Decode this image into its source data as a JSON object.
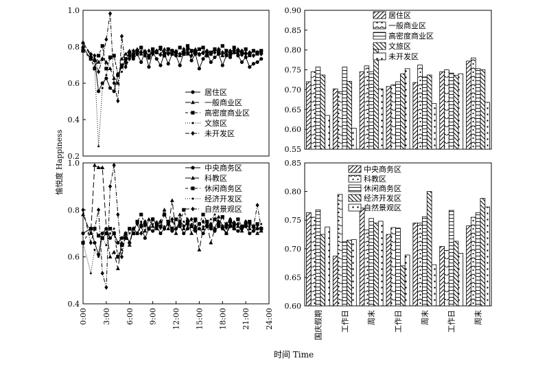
{
  "figure": {
    "ylabel": "愉悦度 Happiness",
    "xlabel": "时间 Time"
  },
  "chart_data": [
    {
      "type": "line",
      "panel": "top-left",
      "xlim": [
        0,
        24
      ],
      "ylim": [
        0.1,
        1.0
      ],
      "yticks": [
        "1.0",
        "0.8",
        "0.6",
        "0.4",
        "0.2"
      ],
      "xticks": [],
      "legend_position": "center-right",
      "x": [
        0,
        1,
        1.5,
        2,
        2.5,
        3,
        3.5,
        4,
        4.5,
        5,
        5.5,
        6,
        6.5,
        7,
        7.5,
        8,
        8.5,
        9,
        9.5,
        10,
        10.5,
        11,
        11.5,
        12,
        12.5,
        13,
        13.5,
        14,
        14.5,
        15,
        15.5,
        16,
        16.5,
        17,
        17.5,
        18,
        18.5,
        19,
        19.5,
        20,
        20.5,
        21,
        21.5,
        22,
        22.5,
        23
      ],
      "series": [
        {
          "name": "居住区",
          "marker": "circle",
          "dash": "solid",
          "values": [
            0.77,
            0.7,
            0.69,
            0.5,
            0.55,
            0.58,
            0.52,
            0.5,
            0.6,
            0.65,
            0.68,
            0.72,
            0.7,
            0.73,
            0.68,
            0.74,
            0.65,
            0.74,
            0.7,
            0.66,
            0.73,
            0.67,
            0.73,
            0.72,
            0.66,
            0.74,
            0.76,
            0.69,
            0.73,
            0.64,
            0.7,
            0.74,
            0.68,
            0.71,
            0.73,
            0.66,
            0.72,
            0.71,
            0.75,
            0.72,
            0.68,
            0.71,
            0.65,
            0.67,
            0.68,
            0.7
          ]
        },
        {
          "name": "一般商业区",
          "marker": "triangle",
          "dash": "8,4",
          "values": [
            0.8,
            0.72,
            0.7,
            0.68,
            0.7,
            0.68,
            0.64,
            0.58,
            0.55,
            0.7,
            0.73,
            0.75,
            0.74,
            0.76,
            0.73,
            0.75,
            0.71,
            0.75,
            0.74,
            0.73,
            0.76,
            0.74,
            0.73,
            0.75,
            0.72,
            0.74,
            0.73,
            0.75,
            0.76,
            0.73,
            0.74,
            0.75,
            0.73,
            0.76,
            0.74,
            0.72,
            0.75,
            0.73,
            0.74,
            0.76,
            0.73,
            0.74,
            0.72,
            0.75,
            0.73,
            0.74
          ]
        },
        {
          "name": "高密度商业区",
          "marker": "square",
          "dash": "4,3",
          "values": [
            0.75,
            0.7,
            0.64,
            0.72,
            0.78,
            0.64,
            0.71,
            0.72,
            0.6,
            0.66,
            0.7,
            0.74,
            0.72,
            0.75,
            0.77,
            0.74,
            0.72,
            0.76,
            0.74,
            0.77,
            0.72,
            0.76,
            0.75,
            0.74,
            0.77,
            0.73,
            0.78,
            0.75,
            0.74,
            0.76,
            0.77,
            0.72,
            0.74,
            0.76,
            0.74,
            0.78,
            0.75,
            0.73,
            0.77,
            0.75,
            0.74,
            0.76,
            0.73,
            0.75,
            0.74,
            0.75
          ]
        },
        {
          "name": "文旅区",
          "marker": "small-circle",
          "dash": "1,2",
          "values": [
            0.78,
            0.72,
            0.65,
            0.16,
            0.52,
            0.6,
            0.7,
            0.72,
            0.61,
            0.62,
            0.66,
            0.7,
            0.73,
            0.74,
            0.75,
            0.73,
            0.7,
            0.74,
            0.75,
            0.72,
            0.73,
            0.74,
            0.75,
            0.73,
            0.72,
            0.75,
            0.73,
            0.74,
            0.75,
            0.72,
            0.73,
            0.74,
            0.73,
            0.76,
            0.74,
            0.73,
            0.72,
            0.74,
            0.75,
            0.73,
            0.72,
            0.74,
            0.73,
            0.72,
            0.73,
            0.74
          ]
        },
        {
          "name": "未开发区",
          "marker": "diamond",
          "dash": "6,2,1,2",
          "values": [
            0.8,
            0.73,
            0.72,
            0.62,
            0.7,
            0.82,
            0.98,
            0.55,
            0.44,
            0.84,
            0.65,
            0.7,
            0.75,
            0.73,
            0.74,
            0.72,
            0.75,
            0.73,
            0.75,
            0.76,
            0.74,
            0.73,
            0.75,
            0.74,
            0.73,
            0.76,
            0.74,
            0.72,
            0.75,
            0.73,
            0.74,
            0.75,
            0.73,
            0.74,
            0.76,
            0.74,
            0.73,
            0.75,
            0.74,
            0.73,
            0.75,
            0.73,
            0.74,
            0.72,
            0.74,
            0.73
          ]
        }
      ]
    },
    {
      "type": "line",
      "panel": "bottom-left",
      "xlim": [
        0,
        24
      ],
      "ylim": [
        0.4,
        1.0
      ],
      "yticks": [
        "1.0",
        "0.8",
        "0.6",
        "0.4"
      ],
      "xticks": [
        "0:00",
        "3:00",
        "6:00",
        "9:00",
        "12:00",
        "15:00",
        "18:00",
        "21:00",
        "24:00"
      ],
      "legend_position": "top-right",
      "x": [
        0,
        1,
        1.5,
        2,
        2.5,
        3,
        3.5,
        4,
        4.5,
        5,
        5.5,
        6,
        6.5,
        7,
        7.5,
        8,
        8.5,
        9,
        9.5,
        10,
        10.5,
        11,
        11.5,
        12,
        12.5,
        13,
        13.5,
        14,
        14.5,
        15,
        15.5,
        16,
        16.5,
        17,
        17.5,
        18,
        18.5,
        19,
        19.5,
        20,
        20.5,
        21,
        21.5,
        22,
        22.5,
        23
      ],
      "series": [
        {
          "name": "中央商务区",
          "marker": "circle",
          "dash": "solid",
          "values": [
            0.7,
            0.72,
            0.66,
            0.61,
            0.7,
            0.72,
            0.68,
            0.7,
            0.66,
            0.68,
            0.7,
            0.66,
            0.72,
            0.7,
            0.73,
            0.68,
            0.72,
            0.71,
            0.73,
            0.7,
            0.72,
            0.74,
            0.71,
            0.72,
            0.73,
            0.7,
            0.72,
            0.73,
            0.71,
            0.72,
            0.7,
            0.73,
            0.72,
            0.71,
            0.73,
            0.72,
            0.7,
            0.73,
            0.72,
            0.71,
            0.72,
            0.73,
            0.7,
            0.71,
            0.72,
            0.72
          ]
        },
        {
          "name": "科教区",
          "marker": "triangle",
          "dash": "8,4",
          "values": [
            0.78,
            0.7,
            0.99,
            0.98,
            0.98,
            0.72,
            0.6,
            0.62,
            0.55,
            0.66,
            0.7,
            0.65,
            0.72,
            0.7,
            0.74,
            0.71,
            0.76,
            0.73,
            0.72,
            0.75,
            0.8,
            0.72,
            0.84,
            0.7,
            0.78,
            0.72,
            0.76,
            0.7,
            0.73,
            0.63,
            0.72,
            0.74,
            0.66,
            0.72,
            0.77,
            0.73,
            0.7,
            0.74,
            0.72,
            0.73,
            0.71,
            0.74,
            0.72,
            0.73,
            0.7,
            0.71
          ]
        },
        {
          "name": "休闲商务区",
          "marker": "square",
          "dash": "4,3",
          "values": [
            0.66,
            0.72,
            0.72,
            0.69,
            0.68,
            0.7,
            0.72,
            0.7,
            0.6,
            0.65,
            0.68,
            0.72,
            0.7,
            0.75,
            0.78,
            0.74,
            0.72,
            0.76,
            0.74,
            0.73,
            0.78,
            0.75,
            0.72,
            0.76,
            0.74,
            0.8,
            0.75,
            0.73,
            0.76,
            0.74,
            0.78,
            0.75,
            0.73,
            0.76,
            0.74,
            0.77,
            0.73,
            0.75,
            0.74,
            0.76,
            0.73,
            0.74,
            0.75,
            0.73,
            0.74,
            0.72
          ]
        },
        {
          "name": "经济开发区",
          "marker": "small-circle",
          "dash": "1,2",
          "values": [
            0.66,
            0.53,
            0.63,
            0.6,
            0.68,
            0.65,
            0.7,
            0.72,
            0.6,
            0.63,
            0.68,
            0.7,
            0.72,
            0.74,
            0.75,
            0.73,
            0.72,
            0.74,
            0.75,
            0.72,
            0.73,
            0.74,
            0.75,
            0.72,
            0.73,
            0.75,
            0.73,
            0.74,
            0.75,
            0.72,
            0.73,
            0.74,
            0.76,
            0.78,
            0.74,
            0.73,
            0.72,
            0.74,
            0.75,
            0.73,
            0.72,
            0.74,
            0.73,
            0.72,
            0.73,
            0.74
          ]
        },
        {
          "name": "自然景观区",
          "marker": "diamond",
          "dash": "6,2,1,2",
          "values": [
            0.8,
            0.66,
            0.72,
            0.8,
            0.53,
            0.47,
            0.9,
            0.99,
            0.78,
            0.6,
            0.7,
            0.66,
            0.72,
            0.74,
            0.7,
            0.75,
            0.72,
            0.76,
            0.73,
            0.75,
            0.72,
            0.74,
            0.76,
            0.72,
            0.75,
            0.73,
            0.74,
            0.76,
            0.72,
            0.74,
            0.75,
            0.73,
            0.74,
            0.72,
            0.75,
            0.73,
            0.74,
            0.76,
            0.73,
            0.74,
            0.72,
            0.75,
            0.74,
            0.73,
            0.82,
            0.72
          ]
        }
      ]
    },
    {
      "type": "bar",
      "panel": "top-right",
      "ylim": [
        0.55,
        0.9
      ],
      "yticks": [
        "0.90",
        "0.85",
        "0.80",
        "0.75",
        "0.70",
        "0.65",
        "0.60",
        "0.55"
      ],
      "legend_position": "top-right",
      "categories": [
        "国庆假期",
        "工作日",
        "周末",
        "工作日",
        "周末",
        "工作日",
        "周末"
      ],
      "series": [
        {
          "name": "居住区",
          "pattern": "diag-right",
          "values": [
            0.72,
            0.702,
            0.745,
            0.708,
            0.718,
            0.745,
            0.772
          ]
        },
        {
          "name": "一般商业区",
          "pattern": "arc-dot",
          "values": [
            0.745,
            0.695,
            0.76,
            0.712,
            0.762,
            0.75,
            0.78
          ]
        },
        {
          "name": "高密度商业区",
          "pattern": "horizontal",
          "values": [
            0.757,
            0.757,
            0.745,
            0.72,
            0.732,
            0.742,
            0.753
          ]
        },
        {
          "name": "文旅区",
          "pattern": "diag-left",
          "values": [
            0.737,
            0.721,
            0.813,
            0.74,
            0.737,
            0.736,
            0.75
          ]
        },
        {
          "name": "未开发区",
          "pattern": "dots",
          "values": [
            0.635,
            0.603,
            0.702,
            0.753,
            0.665,
            0.74,
            0.668
          ]
        }
      ]
    },
    {
      "type": "bar",
      "panel": "bottom-right",
      "ylim": [
        0.6,
        0.85
      ],
      "yticks": [
        "0.85",
        "0.80",
        "0.75",
        "0.70",
        "0.65",
        "0.60"
      ],
      "legend_position": "top-right",
      "categories": [
        "国庆假期",
        "工作日",
        "周末",
        "工作日",
        "周末",
        "工作日",
        "周末"
      ],
      "series": [
        {
          "name": "中央商务区",
          "pattern": "diag-right",
          "values": [
            0.763,
            0.687,
            0.771,
            0.725,
            0.745,
            0.704,
            0.74
          ]
        },
        {
          "name": "科教区",
          "pattern": "arc-dot",
          "values": [
            0.755,
            0.795,
            0.733,
            0.737,
            0.745,
            0.697,
            0.755
          ]
        },
        {
          "name": "休闲商务区",
          "pattern": "horizontal",
          "values": [
            0.768,
            0.712,
            0.753,
            0.736,
            0.756,
            0.767,
            0.763
          ]
        },
        {
          "name": "经济开发区",
          "pattern": "diag-left",
          "values": [
            0.725,
            0.715,
            0.745,
            0.67,
            0.8,
            0.713,
            0.788
          ]
        },
        {
          "name": "自然景观区",
          "pattern": "dots",
          "values": [
            0.738,
            0.716,
            0.748,
            0.689,
            0.672,
            0.692,
            0.773
          ]
        }
      ]
    }
  ]
}
